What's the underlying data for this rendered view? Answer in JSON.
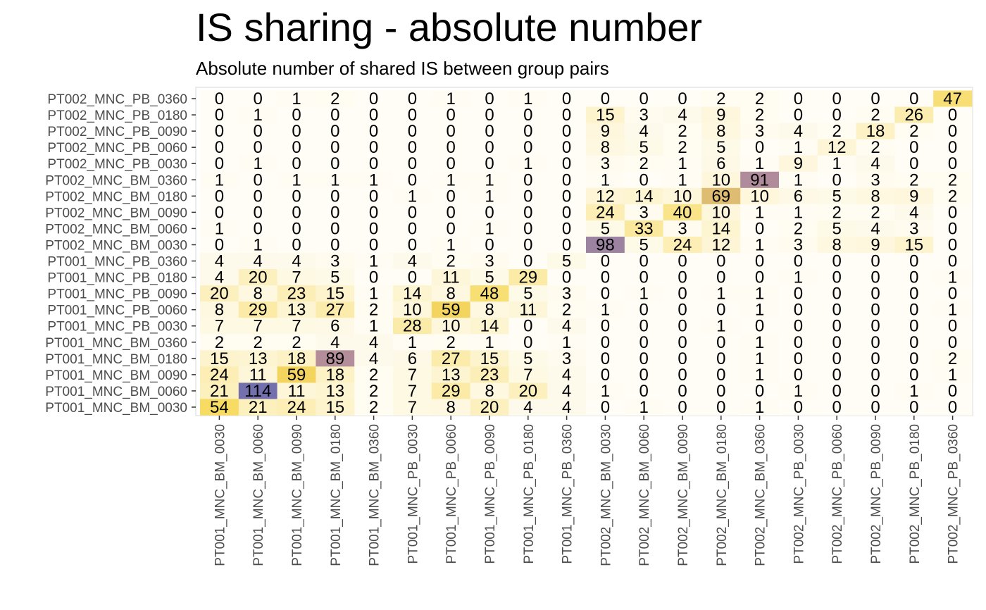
{
  "chart_data": {
    "type": "heatmap",
    "title": "IS sharing - absolute number",
    "subtitle": "Absolute number of shared IS between group pairs",
    "xlabel": "",
    "ylabel": "",
    "x_categories": [
      "PT001_MNC_BM_0030",
      "PT001_MNC_BM_0060",
      "PT001_MNC_BM_0090",
      "PT001_MNC_BM_0180",
      "PT001_MNC_BM_0360",
      "PT001_MNC_PB_0030",
      "PT001_MNC_PB_0060",
      "PT001_MNC_PB_0090",
      "PT001_MNC_PB_0180",
      "PT001_MNC_PB_0360",
      "PT002_MNC_BM_0030",
      "PT002_MNC_BM_0060",
      "PT002_MNC_BM_0090",
      "PT002_MNC_BM_0180",
      "PT002_MNC_BM_0360",
      "PT002_MNC_PB_0030",
      "PT002_MNC_PB_0060",
      "PT002_MNC_PB_0090",
      "PT002_MNC_PB_0180",
      "PT002_MNC_PB_0360"
    ],
    "y_categories_top_to_bottom": [
      "PT002_MNC_PB_0360",
      "PT002_MNC_PB_0180",
      "PT002_MNC_PB_0090",
      "PT002_MNC_PB_0060",
      "PT002_MNC_PB_0030",
      "PT002_MNC_BM_0360",
      "PT002_MNC_BM_0180",
      "PT002_MNC_BM_0090",
      "PT002_MNC_BM_0060",
      "PT002_MNC_BM_0030",
      "PT001_MNC_PB_0360",
      "PT001_MNC_PB_0180",
      "PT001_MNC_PB_0090",
      "PT001_MNC_PB_0060",
      "PT001_MNC_PB_0030",
      "PT001_MNC_BM_0360",
      "PT001_MNC_BM_0180",
      "PT001_MNC_BM_0090",
      "PT001_MNC_BM_0060",
      "PT001_MNC_BM_0030"
    ],
    "values": [
      [
        0,
        0,
        1,
        2,
        0,
        0,
        1,
        0,
        1,
        0,
        0,
        0,
        0,
        2,
        2,
        0,
        0,
        0,
        0,
        47
      ],
      [
        0,
        1,
        0,
        0,
        0,
        0,
        0,
        0,
        0,
        0,
        15,
        3,
        4,
        9,
        2,
        0,
        0,
        2,
        26,
        0
      ],
      [
        0,
        0,
        0,
        0,
        0,
        0,
        0,
        0,
        0,
        0,
        9,
        4,
        2,
        8,
        3,
        4,
        2,
        18,
        2,
        0
      ],
      [
        0,
        0,
        0,
        0,
        0,
        0,
        0,
        0,
        0,
        0,
        8,
        5,
        2,
        5,
        0,
        1,
        12,
        2,
        0,
        0
      ],
      [
        0,
        1,
        0,
        0,
        0,
        0,
        0,
        0,
        1,
        0,
        3,
        2,
        1,
        6,
        1,
        9,
        1,
        4,
        0,
        0
      ],
      [
        1,
        0,
        1,
        1,
        1,
        0,
        1,
        1,
        0,
        0,
        1,
        0,
        1,
        10,
        91,
        1,
        0,
        3,
        2,
        2
      ],
      [
        0,
        0,
        0,
        0,
        0,
        1,
        0,
        1,
        0,
        0,
        12,
        14,
        10,
        69,
        10,
        6,
        5,
        8,
        9,
        2
      ],
      [
        0,
        0,
        0,
        0,
        0,
        0,
        0,
        0,
        0,
        0,
        24,
        3,
        40,
        10,
        1,
        1,
        2,
        2,
        4,
        0
      ],
      [
        1,
        0,
        0,
        0,
        0,
        0,
        0,
        1,
        0,
        0,
        5,
        33,
        3,
        14,
        0,
        2,
        5,
        4,
        3,
        0
      ],
      [
        0,
        1,
        0,
        0,
        0,
        0,
        1,
        0,
        0,
        0,
        98,
        5,
        24,
        12,
        1,
        3,
        8,
        9,
        15,
        0
      ],
      [
        4,
        4,
        4,
        3,
        1,
        4,
        2,
        3,
        0,
        5,
        0,
        0,
        0,
        0,
        0,
        0,
        0,
        0,
        0,
        0
      ],
      [
        4,
        20,
        7,
        5,
        0,
        0,
        11,
        5,
        29,
        0,
        0,
        0,
        0,
        0,
        0,
        1,
        0,
        0,
        0,
        1
      ],
      [
        20,
        8,
        23,
        15,
        1,
        14,
        8,
        48,
        5,
        3,
        0,
        1,
        0,
        1,
        1,
        0,
        0,
        0,
        0,
        0
      ],
      [
        8,
        29,
        13,
        27,
        2,
        10,
        59,
        8,
        11,
        2,
        1,
        0,
        0,
        0,
        1,
        0,
        0,
        0,
        0,
        1
      ],
      [
        7,
        7,
        7,
        6,
        1,
        28,
        10,
        14,
        0,
        4,
        0,
        0,
        0,
        1,
        0,
        0,
        0,
        0,
        0,
        0
      ],
      [
        2,
        2,
        2,
        4,
        4,
        1,
        2,
        1,
        0,
        1,
        0,
        0,
        0,
        0,
        1,
        0,
        0,
        0,
        0,
        0
      ],
      [
        15,
        13,
        18,
        89,
        4,
        6,
        27,
        15,
        5,
        3,
        0,
        0,
        0,
        0,
        1,
        0,
        0,
        0,
        0,
        2
      ],
      [
        24,
        11,
        59,
        18,
        2,
        7,
        13,
        23,
        7,
        4,
        0,
        0,
        0,
        0,
        1,
        0,
        0,
        0,
        0,
        1
      ],
      [
        21,
        114,
        11,
        13,
        2,
        7,
        29,
        8,
        20,
        4,
        1,
        0,
        0,
        0,
        0,
        1,
        0,
        0,
        1,
        0
      ],
      [
        54,
        21,
        24,
        15,
        2,
        7,
        8,
        20,
        4,
        4,
        0,
        1,
        0,
        0,
        1,
        0,
        0,
        0,
        0,
        0
      ]
    ],
    "value_range": [
      0,
      114
    ],
    "colorscale": [
      "#fffdf6",
      "#f7d95a",
      "#b48d9b",
      "#7370ad"
    ],
    "legend": "none",
    "grid": true
  }
}
